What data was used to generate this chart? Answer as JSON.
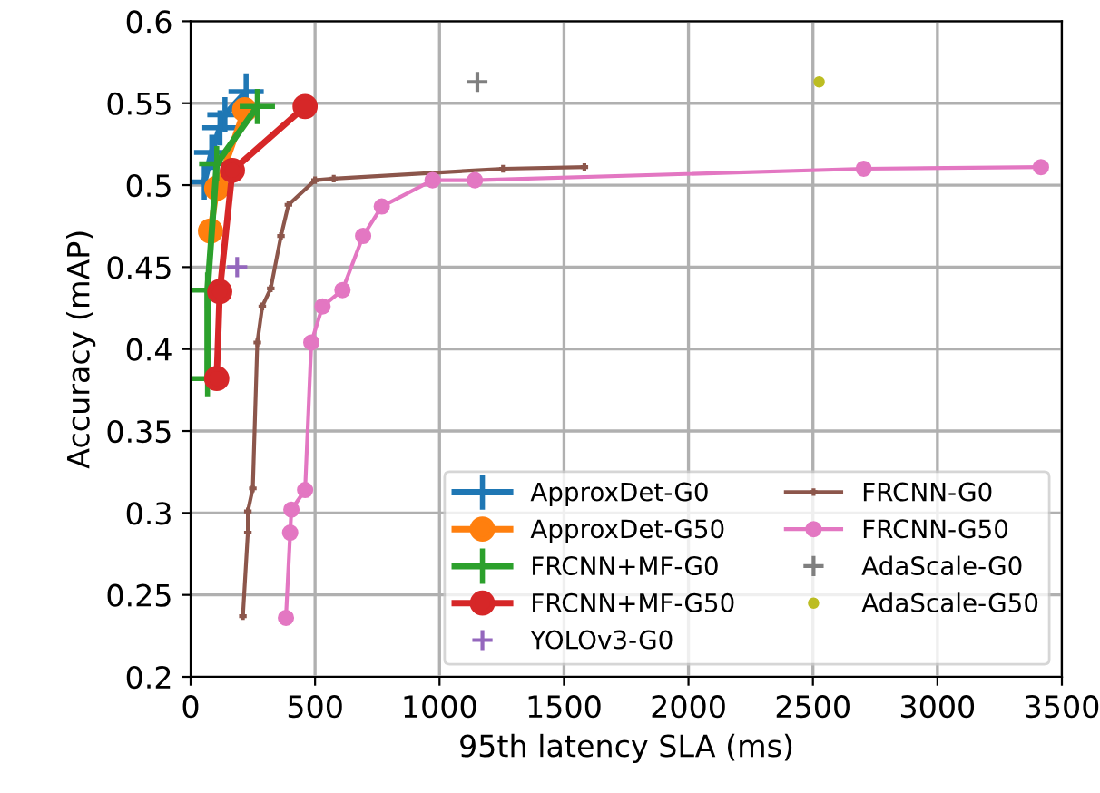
{
  "chart_data": {
    "type": "line",
    "xlabel": "95th latency SLA (ms)",
    "ylabel": "Accuracy (mAP)",
    "xlim": [
      0,
      3500
    ],
    "ylim": [
      0.2,
      0.6
    ],
    "xticks": [
      0,
      500,
      1000,
      1500,
      2000,
      2500,
      3000,
      3500
    ],
    "yticks": [
      0.2,
      0.25,
      0.3,
      0.35,
      0.4,
      0.45,
      0.5,
      0.55,
      0.6
    ],
    "grid": true,
    "legend": "bottom right",
    "series": [
      {
        "name": "ApproxDet-G0",
        "color": "#1f77b4",
        "marker": "cross",
        "x": [
          55,
          85,
          118,
          138,
          223
        ],
        "values": [
          0.502,
          0.52,
          0.535,
          0.543,
          0.557
        ]
      },
      {
        "name": "ApproxDet-G50",
        "color": "#ff7f0e",
        "marker": "circle",
        "x": [
          80,
          105,
          217
        ],
        "values": [
          0.472,
          0.498,
          0.546
        ]
      },
      {
        "name": "FRCNN+MF-G0",
        "color": "#2ca02c",
        "marker": "cross",
        "x": [
          68,
          68,
          105,
          268
        ],
        "values": [
          0.382,
          0.436,
          0.513,
          0.548
        ]
      },
      {
        "name": "FRCNN+MF-G50",
        "color": "#d62728",
        "marker": "circle",
        "x": [
          105,
          117,
          168,
          460
        ],
        "values": [
          0.382,
          0.435,
          0.509,
          0.548
        ]
      },
      {
        "name": "YOLOv3-G0",
        "color": "#9467bd",
        "type": "scatter",
        "marker": "cross",
        "x": [
          187
        ],
        "values": [
          0.45
        ]
      },
      {
        "name": "FRCNN-G0",
        "color": "#8c564b",
        "marker": "cross",
        "x": [
          210,
          230,
          230,
          250,
          268,
          288,
          322,
          363,
          393,
          500,
          575,
          1255,
          1582
        ],
        "values": [
          0.237,
          0.288,
          0.301,
          0.315,
          0.404,
          0.426,
          0.437,
          0.469,
          0.488,
          0.503,
          0.504,
          0.51,
          0.511
        ]
      },
      {
        "name": "FRCNN-G50",
        "color": "#e377c2",
        "marker": "circle",
        "x": [
          383,
          400,
          405,
          460,
          485,
          530,
          610,
          693,
          768,
          972,
          1142,
          2704,
          3416
        ],
        "values": [
          0.236,
          0.288,
          0.302,
          0.314,
          0.404,
          0.426,
          0.436,
          0.469,
          0.487,
          0.503,
          0.503,
          0.51,
          0.511
        ]
      },
      {
        "name": "AdaScale-G0",
        "color": "#7f7f7f",
        "type": "scatter",
        "marker": "cross",
        "x": [
          1152
        ],
        "values": [
          0.563
        ]
      },
      {
        "name": "AdaScale-G50",
        "color": "#bcbd22",
        "type": "scatter",
        "marker": "circle",
        "x": [
          2525
        ],
        "values": [
          0.563
        ]
      }
    ]
  }
}
